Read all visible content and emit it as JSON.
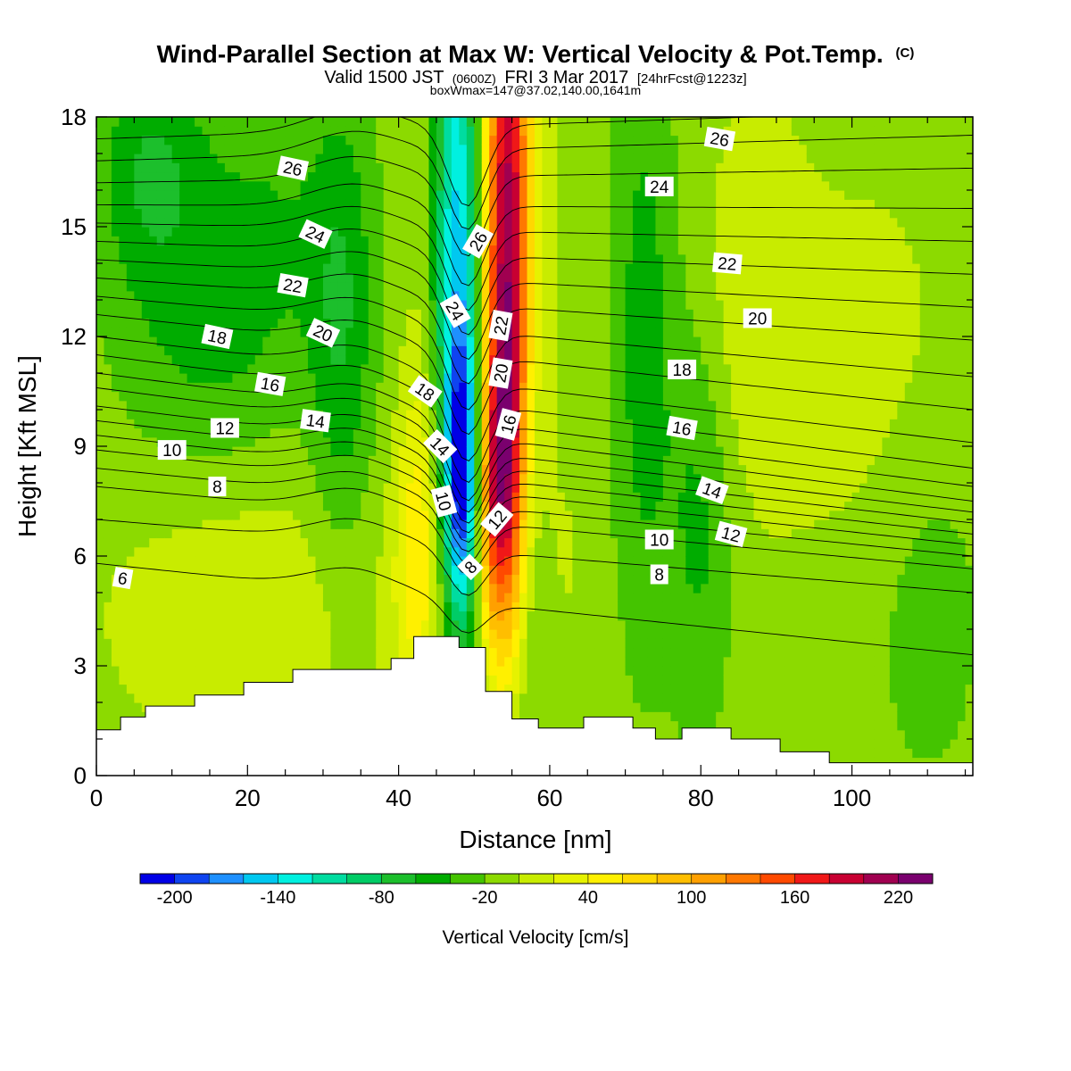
{
  "chart_data": {
    "type": "heatmap",
    "title": "Wind-Parallel Section at Max W: Vertical Velocity & Pot.Temp.",
    "title_mark": "(C)",
    "subtitle_parts": [
      "Valid 1500 JST",
      "(0600Z)",
      "FRI 3 Mar 2017",
      "[24hrFcst@1223z]"
    ],
    "subtitle2": "boxWmax=147@37.02,140.00,1641m",
    "xlabel": "Distance [nm]",
    "ylabel": "Height [Kft MSL]",
    "xlim": [
      0,
      116
    ],
    "ylim": [
      0,
      18
    ],
    "xticks": [
      0,
      20,
      40,
      60,
      80,
      100
    ],
    "yticks": [
      0,
      3,
      6,
      9,
      12,
      15,
      18
    ],
    "grid": false,
    "colorbar": {
      "label": "Vertical Velocity [cm/s]",
      "min": -220,
      "max": 240,
      "step": 20,
      "tick_values": [
        -200,
        -140,
        -80,
        -20,
        40,
        100,
        160,
        220
      ],
      "tick_labels": [
        "-200",
        "-140",
        "-80",
        "-20",
        "40",
        "100",
        "160",
        "220"
      ],
      "colors": [
        "#0000e6",
        "#0f44f0",
        "#1e90ff",
        "#00c8f0",
        "#00f0e0",
        "#00dca0",
        "#00cc66",
        "#1cbf2c",
        "#00ac00",
        "#44c400",
        "#8cda00",
        "#c8ec00",
        "#e6f200",
        "#fff000",
        "#ffd800",
        "#ffbe00",
        "#ffa000",
        "#ff7800",
        "#ff4a00",
        "#f01818",
        "#c80032",
        "#a00050",
        "#7a006e"
      ]
    },
    "terrain_profile": [
      [
        0,
        1.25
      ],
      [
        3.2,
        1.25
      ],
      [
        3.2,
        1.6
      ],
      [
        6.5,
        1.6
      ],
      [
        6.5,
        1.9
      ],
      [
        13,
        1.9
      ],
      [
        13,
        2.2
      ],
      [
        19.5,
        2.2
      ],
      [
        19.5,
        2.55
      ],
      [
        26,
        2.55
      ],
      [
        26,
        2.9
      ],
      [
        39,
        2.9
      ],
      [
        39,
        3.2
      ],
      [
        42,
        3.2
      ],
      [
        42,
        3.8
      ],
      [
        48,
        3.8
      ],
      [
        48,
        3.5
      ],
      [
        51.5,
        3.5
      ],
      [
        51.5,
        2.3
      ],
      [
        55,
        2.3
      ],
      [
        55,
        1.55
      ],
      [
        58.5,
        1.55
      ],
      [
        58.5,
        1.3
      ],
      [
        64.5,
        1.3
      ],
      [
        64.5,
        1.6
      ],
      [
        71,
        1.6
      ],
      [
        71,
        1.3
      ],
      [
        74,
        1.3
      ],
      [
        74,
        1.0
      ],
      [
        77.5,
        1.0
      ],
      [
        77.5,
        1.3
      ],
      [
        84,
        1.3
      ],
      [
        84,
        1.0
      ],
      [
        90.5,
        1.0
      ],
      [
        90.5,
        0.65
      ],
      [
        97,
        0.65
      ],
      [
        97,
        0.35
      ],
      [
        116,
        0.35
      ]
    ],
    "w_field": {
      "background": -10,
      "features": [
        {
          "x": 48.0,
          "y": 14.0,
          "sx": 2.4,
          "sy": 6.0,
          "value": -150
        },
        {
          "x": 48.5,
          "y": 8.0,
          "sx": 1.6,
          "sy": 2.6,
          "value": -160
        },
        {
          "x": 54.5,
          "y": 14.5,
          "sx": 2.6,
          "sy": 6.0,
          "value": 230
        },
        {
          "x": 53.0,
          "y": 7.5,
          "sx": 2.3,
          "sy": 2.8,
          "value": 130
        },
        {
          "x": 57.5,
          "y": 10.0,
          "sx": 1.4,
          "sy": 8.0,
          "value": -40
        },
        {
          "x": 42.5,
          "y": 6.0,
          "sx": 2.2,
          "sy": 3.2,
          "value": 55
        },
        {
          "x": 44.0,
          "y": 12.0,
          "sx": 2.2,
          "sy": 6.0,
          "value": 20
        },
        {
          "x": 7.0,
          "y": 16.5,
          "sx": 5.0,
          "sy": 2.5,
          "value": -50
        },
        {
          "x": 22.0,
          "y": 15.0,
          "sx": 8.0,
          "sy": 3.0,
          "value": -30
        },
        {
          "x": 32.5,
          "y": 12.0,
          "sx": 3.0,
          "sy": 4.5,
          "value": -45
        },
        {
          "x": 14.0,
          "y": 11.0,
          "sx": 8.0,
          "sy": 2.5,
          "value": -25
        },
        {
          "x": 20.0,
          "y": 4.5,
          "sx": 14.0,
          "sy": 3.0,
          "value": 25
        },
        {
          "x": 72.5,
          "y": 12.0,
          "sx": 3.0,
          "sy": 6.0,
          "value": -40
        },
        {
          "x": 80.0,
          "y": 7.0,
          "sx": 3.0,
          "sy": 4.0,
          "value": -35
        },
        {
          "x": 87.0,
          "y": 13.0,
          "sx": 5.0,
          "sy": 4.0,
          "value": 25
        },
        {
          "x": 102.0,
          "y": 11.0,
          "sx": 9.0,
          "sy": 4.0,
          "value": 20
        },
        {
          "x": 110.0,
          "y": 5.0,
          "sx": 6.0,
          "sy": 4.0,
          "value": -20
        },
        {
          "x": 63.0,
          "y": 6.0,
          "sx": 2.5,
          "sy": 3.0,
          "value": 10
        }
      ]
    },
    "theta_isentropes": [
      {
        "value": 6,
        "left": 5.8,
        "right": 3.3
      },
      {
        "value": 7,
        "left": 7.0,
        "right": 5.0
      },
      {
        "value": 8,
        "left": 7.9,
        "right": 5.65
      },
      {
        "value": 9,
        "left": 8.4,
        "right": 6.0
      },
      {
        "value": 10,
        "left": 8.9,
        "right": 6.3
      },
      {
        "value": 11,
        "left": 9.3,
        "right": 6.6
      },
      {
        "value": 12,
        "left": 9.7,
        "right": 6.9
      },
      {
        "value": 13,
        "left": 10.1,
        "right": 7.2
      },
      {
        "value": 14,
        "left": 10.6,
        "right": 7.5
      },
      {
        "value": 15,
        "left": 11.0,
        "right": 7.9
      },
      {
        "value": 16,
        "left": 11.5,
        "right": 8.4
      },
      {
        "value": 17,
        "left": 12.0,
        "right": 9.1
      },
      {
        "value": 18,
        "left": 12.6,
        "right": 10.0
      },
      {
        "value": 19,
        "left": 13.1,
        "right": 10.9
      },
      {
        "value": 20,
        "left": 13.6,
        "right": 11.9
      },
      {
        "value": 21,
        "left": 14.1,
        "right": 12.8
      },
      {
        "value": 22,
        "left": 14.6,
        "right": 13.7
      },
      {
        "value": 23,
        "left": 15.1,
        "right": 14.6
      },
      {
        "value": 24,
        "left": 15.6,
        "right": 15.5
      },
      {
        "value": 25,
        "left": 16.2,
        "right": 16.6
      },
      {
        "value": 26,
        "left": 16.8,
        "right": 17.5
      },
      {
        "value": 27,
        "left": 17.4,
        "right": 18.2
      }
    ],
    "contour_labels": [
      {
        "text": "6",
        "x": 3.5,
        "y": 5.4,
        "angle": 10
      },
      {
        "text": "8",
        "x": 16.0,
        "y": 7.9,
        "angle": 0
      },
      {
        "text": "10",
        "x": 10.0,
        "y": 8.9,
        "angle": 0
      },
      {
        "text": "12",
        "x": 17.0,
        "y": 9.5,
        "angle": 0
      },
      {
        "text": "14",
        "x": 29.0,
        "y": 9.7,
        "angle": 8
      },
      {
        "text": "16",
        "x": 23.0,
        "y": 10.7,
        "angle": 10
      },
      {
        "text": "18",
        "x": 16.0,
        "y": 12.0,
        "angle": 12
      },
      {
        "text": "20",
        "x": 30.0,
        "y": 12.1,
        "angle": 25
      },
      {
        "text": "22",
        "x": 26.0,
        "y": 13.4,
        "angle": 10
      },
      {
        "text": "24",
        "x": 29.0,
        "y": 14.8,
        "angle": 25
      },
      {
        "text": "26",
        "x": 26.0,
        "y": 16.6,
        "angle": 12
      },
      {
        "text": "18",
        "x": 43.5,
        "y": 10.5,
        "angle": 35
      },
      {
        "text": "14",
        "x": 45.5,
        "y": 9.0,
        "angle": 45
      },
      {
        "text": "10",
        "x": 46.0,
        "y": 7.5,
        "angle": 75
      },
      {
        "text": "8",
        "x": 49.5,
        "y": 5.7,
        "angle": -45
      },
      {
        "text": "24",
        "x": 47.5,
        "y": 12.7,
        "angle": 60
      },
      {
        "text": "26",
        "x": 50.5,
        "y": 14.6,
        "angle": -60
      },
      {
        "text": "22",
        "x": 53.5,
        "y": 12.3,
        "angle": -80
      },
      {
        "text": "20",
        "x": 53.5,
        "y": 11.0,
        "angle": -80
      },
      {
        "text": "16",
        "x": 54.5,
        "y": 9.6,
        "angle": -75
      },
      {
        "text": "12",
        "x": 53.0,
        "y": 7.0,
        "angle": -50
      },
      {
        "text": "26",
        "x": 82.5,
        "y": 17.4,
        "angle": 10
      },
      {
        "text": "24",
        "x": 74.5,
        "y": 16.1,
        "angle": 0
      },
      {
        "text": "22",
        "x": 83.5,
        "y": 14.0,
        "angle": 5
      },
      {
        "text": "20",
        "x": 87.5,
        "y": 12.5,
        "angle": 0
      },
      {
        "text": "18",
        "x": 77.5,
        "y": 11.1,
        "angle": 0
      },
      {
        "text": "16",
        "x": 77.5,
        "y": 9.5,
        "angle": 10
      },
      {
        "text": "14",
        "x": 81.5,
        "y": 7.8,
        "angle": 20
      },
      {
        "text": "12",
        "x": 84.0,
        "y": 6.6,
        "angle": 15
      },
      {
        "text": "10",
        "x": 74.5,
        "y": 6.45,
        "angle": 0
      },
      {
        "text": "8",
        "x": 74.5,
        "y": 5.5,
        "angle": 0
      }
    ]
  }
}
